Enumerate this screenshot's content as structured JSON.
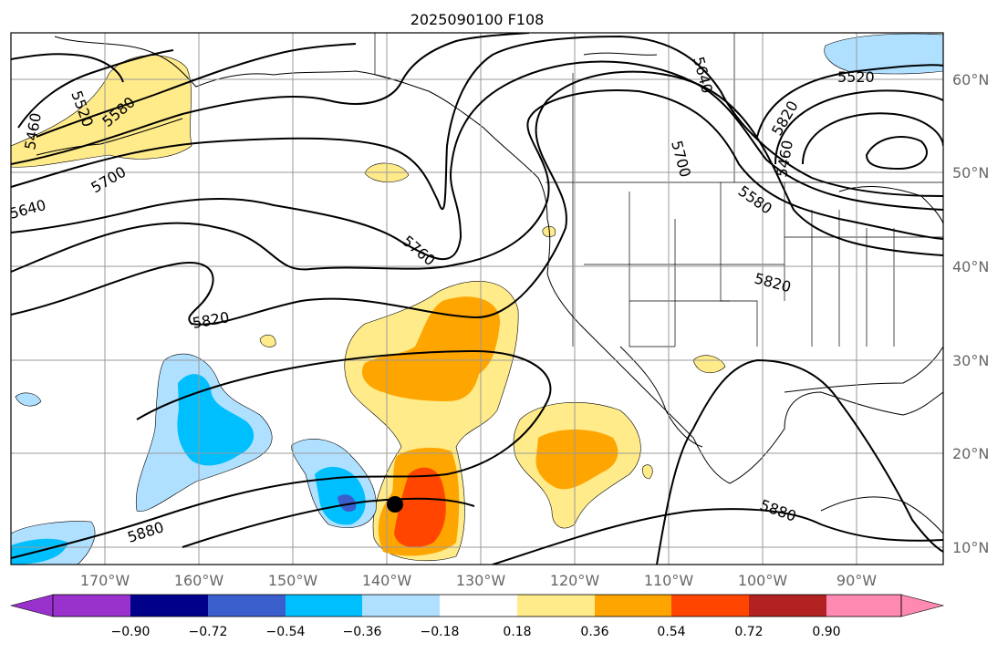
{
  "title": "2025090100 F108",
  "lon_labels": [
    "170°W",
    "160°W",
    "150°W",
    "140°W",
    "130°W",
    "120°W",
    "110°W",
    "100°W",
    "90°W"
  ],
  "lat_labels": [
    "60°N",
    "50°N",
    "40°N",
    "30°N",
    "20°N",
    "10°N"
  ],
  "contour_labels": [
    "5520",
    "5580",
    "5640",
    "5700",
    "5760",
    "5820",
    "5880",
    "5460",
    "5520",
    "5580",
    "5640",
    "5700",
    "5820",
    "5880",
    "5460",
    "5820"
  ],
  "colorbar": {
    "ticks": [
      "−0.90",
      "−0.72",
      "−0.54",
      "−0.36",
      "−0.18",
      "0.18",
      "0.36",
      "0.54",
      "0.72",
      "0.90"
    ],
    "colors": [
      "#9932cc",
      "#00008b",
      "#3a5fcd",
      "#00bfff",
      "#b0e0ff",
      "#ffffff",
      "#ffeb8a",
      "#ffa500",
      "#ff4500",
      "#b22222",
      "#ff89b0"
    ]
  },
  "colors": {
    "pos_light": "#ffeb8a",
    "pos_mid": "#ffa500",
    "pos_high": "#ff4500",
    "neg_light": "#b0e0ff",
    "neg_mid": "#00bfff",
    "neg_high": "#3a5fcd"
  },
  "marker": "storm-position"
}
